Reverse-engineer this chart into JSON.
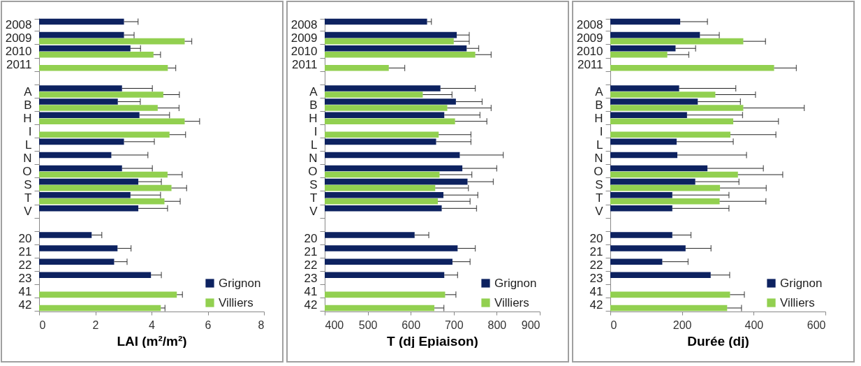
{
  "chart_data": [
    {
      "type": "bar",
      "orientation": "horizontal",
      "xlabel": "LAI (m²/m²)",
      "categories": [
        "2008",
        "2009",
        "2010",
        "2011",
        null,
        "A",
        "B",
        "H",
        "I",
        "L",
        "N",
        "O",
        "S",
        "T",
        "V",
        null,
        "20",
        "21",
        "22",
        "23",
        "41",
        "42"
      ],
      "xlim": [
        0,
        8
      ],
      "xticks": [
        0,
        2,
        4,
        6,
        8
      ],
      "legend": "bottom right",
      "series": [
        {
          "name": "Grignon",
          "color": "#0d2260",
          "values": [
            3.02,
            3.02,
            3.25,
            null,
            null,
            2.95,
            2.8,
            3.57,
            null,
            3.02,
            2.57,
            2.95,
            3.53,
            3.25,
            3.53,
            null,
            1.87,
            2.79,
            2.67,
            3.98,
            null,
            null
          ],
          "errors": [
            0.5,
            0.36,
            0.36,
            null,
            null,
            1.08,
            0.8,
            1.07,
            null,
            1.08,
            1.3,
            1.08,
            0.82,
            1.07,
            1.04,
            null,
            0.36,
            0.48,
            0.46,
            0.37,
            null,
            null
          ]
        },
        {
          "name": "Villiers",
          "color": "#92d050",
          "values": [
            null,
            5.18,
            4.07,
            4.58,
            null,
            4.42,
            4.22,
            5.18,
            4.64,
            null,
            null,
            4.57,
            4.71,
            4.46,
            null,
            null,
            null,
            null,
            null,
            null,
            4.9,
            4.33
          ],
          "errors": [
            null,
            0.25,
            0.25,
            0.28,
            null,
            0.57,
            0.76,
            0.53,
            0.57,
            null,
            null,
            0.52,
            0.54,
            0.56,
            null,
            null,
            null,
            null,
            null,
            null,
            0.2,
            0.15
          ]
        }
      ]
    },
    {
      "type": "bar",
      "orientation": "horizontal",
      "xlabel": "T (dj Epiaison)",
      "categories": [
        "2008",
        "2009",
        "2010",
        "2011",
        null,
        "A",
        "B",
        "H",
        "I",
        "L",
        "N",
        "O",
        "S",
        "T",
        "V",
        null,
        "20",
        "21",
        "22",
        "23",
        "41",
        "42"
      ],
      "xlim": [
        400,
        900
      ],
      "xticks": [
        400,
        500,
        600,
        700,
        800,
        900
      ],
      "legend": "bottom right",
      "series": [
        {
          "name": "Grignon",
          "color": "#0d2260",
          "values": [
            638,
            707,
            730,
            null,
            null,
            669,
            705,
            678,
            null,
            659,
            714,
            720,
            732,
            676,
            672,
            null,
            609,
            709,
            697,
            678,
            null,
            null
          ],
          "errors": [
            10,
            29,
            28,
            null,
            null,
            81,
            61,
            83,
            null,
            81,
            101,
            80,
            60,
            80,
            81,
            null,
            33,
            41,
            41,
            31,
            null,
            null
          ]
        },
        {
          "name": "Villiers",
          "color": "#92d050",
          "values": [
            null,
            700,
            750,
            549,
            null,
            628,
            685,
            703,
            665,
            null,
            null,
            667,
            657,
            663,
            null,
            null,
            null,
            null,
            null,
            null,
            680,
            655
          ],
          "errors": [
            null,
            36,
            37,
            37,
            null,
            68,
            102,
            74,
            75,
            null,
            null,
            75,
            77,
            75,
            null,
            null,
            null,
            null,
            null,
            null,
            25,
            22
          ]
        }
      ]
    },
    {
      "type": "bar",
      "orientation": "horizontal",
      "xlabel": "Durée (dj)",
      "categories": [
        "2008",
        "2009",
        "2010",
        "2011",
        null,
        "A",
        "B",
        "H",
        "I",
        "L",
        "N",
        "O",
        "S",
        "T",
        "V",
        null,
        "20",
        "21",
        "22",
        "23",
        "41",
        "42"
      ],
      "xlim": [
        0,
        600
      ],
      "xticks": [
        0,
        200,
        400,
        600
      ],
      "legend": "bottom right",
      "series": [
        {
          "name": "Grignon",
          "color": "#0d2260",
          "values": [
            195,
            250,
            182,
            null,
            null,
            192,
            244,
            214,
            null,
            185,
            187,
            271,
            237,
            173,
            173,
            null,
            173,
            210,
            145,
            280,
            null,
            null
          ],
          "errors": [
            76,
            54,
            56,
            null,
            null,
            158,
            119,
            155,
            null,
            158,
            193,
            156,
            122,
            158,
            158,
            null,
            52,
            71,
            72,
            53,
            null,
            null
          ]
        },
        {
          "name": "Villiers",
          "color": "#92d050",
          "values": [
            null,
            371,
            159,
            457,
            null,
            293,
            371,
            343,
            335,
            null,
            null,
            356,
            306,
            305,
            null,
            null,
            null,
            null,
            null,
            null,
            334,
            326
          ],
          "errors": [
            null,
            62,
            60,
            62,
            null,
            112,
            170,
            126,
            127,
            null,
            null,
            125,
            129,
            129,
            null,
            null,
            null,
            null,
            null,
            null,
            40,
            40
          ]
        }
      ]
    }
  ]
}
